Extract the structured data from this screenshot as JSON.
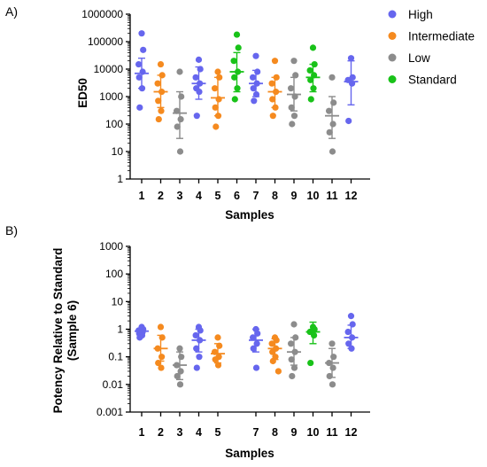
{
  "colors": {
    "High": "#6666ee",
    "Intermediate": "#f58a1f",
    "Low": "#8c8c8c",
    "Standard": "#19c219",
    "axis": "#000000"
  },
  "legend": {
    "placement": "top-right",
    "items": [
      {
        "label": "High",
        "group": "High"
      },
      {
        "label": "Intermediate",
        "group": "Intermediate"
      },
      {
        "label": "Low",
        "group": "Low"
      },
      {
        "label": "Standard",
        "group": "Standard"
      }
    ]
  },
  "chart_data": [
    {
      "type": "scatter",
      "panel_label": "A)",
      "title": "",
      "xlabel": "Samples",
      "ylabel": "ED50",
      "yscale": "log",
      "ylim": [
        1,
        1000000
      ],
      "yticks": [
        {
          "value": 1,
          "label": "1"
        },
        {
          "value": 10,
          "label": "10"
        },
        {
          "value": 100,
          "label": "100"
        },
        {
          "value": 1000,
          "label": "1000"
        },
        {
          "value": 10000,
          "label": "10000"
        },
        {
          "value": 100000,
          "label": "100000"
        },
        {
          "value": 1000000,
          "label": "1000000"
        }
      ],
      "categories": [
        "1",
        "2",
        "3",
        "4",
        "5",
        "6",
        "7",
        "8",
        "9",
        "10",
        "11",
        "12"
      ],
      "samples": [
        {
          "label": "1",
          "group": "High",
          "points": [
            200000,
            50000,
            15000,
            8000,
            5000,
            2000,
            400
          ],
          "mean": 7000,
          "err": [
            2000,
            25000
          ]
        },
        {
          "label": "2",
          "group": "Intermediate",
          "points": [
            15000,
            6000,
            3000,
            1500,
            700,
            300,
            150
          ],
          "mean": 1500,
          "err": [
            400,
            6000
          ]
        },
        {
          "label": "3",
          "group": "Low",
          "points": [
            8000,
            1000,
            300,
            150,
            80,
            10
          ],
          "mean": 250,
          "err": [
            30,
            1500
          ]
        },
        {
          "label": "4",
          "group": "High",
          "points": [
            22000,
            10000,
            5000,
            3000,
            2000,
            1500,
            200
          ],
          "mean": 3000,
          "err": [
            800,
            12000
          ]
        },
        {
          "label": "5",
          "group": "Intermediate",
          "points": [
            8000,
            5000,
            2000,
            800,
            400,
            200,
            80
          ],
          "mean": 900,
          "err": [
            200,
            5000
          ]
        },
        {
          "label": "6",
          "group": "Standard",
          "points": [
            180000,
            60000,
            20000,
            8000,
            5000,
            2000,
            800
          ],
          "mean": 8000,
          "err": [
            1500,
            40000
          ]
        },
        {
          "label": "7",
          "group": "High",
          "points": [
            30000,
            8000,
            5000,
            3000,
            2000,
            1200,
            700
          ],
          "mean": 3000,
          "err": [
            1000,
            9000
          ]
        },
        {
          "label": "8",
          "group": "Intermediate",
          "points": [
            20000,
            5000,
            3000,
            1500,
            800,
            400,
            200
          ],
          "mean": 1500,
          "err": [
            400,
            5000
          ]
        },
        {
          "label": "9",
          "group": "Low",
          "points": [
            20000,
            6000,
            2000,
            1000,
            400,
            200,
            100
          ],
          "mean": 1200,
          "err": [
            300,
            5000
          ]
        },
        {
          "label": "10",
          "group": "Standard",
          "points": [
            60000,
            15000,
            9000,
            6000,
            4000,
            2000,
            800
          ],
          "mean": 5000,
          "err": [
            1500,
            15000
          ]
        },
        {
          "label": "11",
          "group": "Low",
          "points": [
            5000,
            600,
            300,
            100,
            50,
            10
          ],
          "mean": 200,
          "err": [
            30,
            1000
          ]
        },
        {
          "label": "12",
          "group": "High",
          "points": [
            25000,
            5000,
            4000,
            3000,
            130
          ],
          "mean": 3500,
          "err": [
            500,
            20000
          ]
        }
      ]
    },
    {
      "type": "scatter",
      "panel_label": "B)",
      "title": "",
      "xlabel": "Samples",
      "ylabel": "Potency Relative to Standard\n(Sample 6)",
      "yscale": "log",
      "ylim": [
        0.001,
        1000
      ],
      "yticks": [
        {
          "value": 0.001,
          "label": "0.001"
        },
        {
          "value": 0.01,
          "label": "0.01"
        },
        {
          "value": 0.1,
          "label": "0.1"
        },
        {
          "value": 1,
          "label": "1"
        },
        {
          "value": 10,
          "label": "10"
        },
        {
          "value": 100,
          "label": "100"
        },
        {
          "value": 1000,
          "label": "1000"
        }
      ],
      "categories": [
        "1",
        "2",
        "3",
        "4",
        "5",
        "7",
        "8",
        "9",
        "10",
        "11",
        "12"
      ],
      "samples": [
        {
          "label": "1",
          "group": "High",
          "points": [
            1.2,
            1.0,
            0.9,
            0.8,
            0.7,
            0.6,
            0.5
          ],
          "mean": 0.85,
          "err": [
            0.7,
            1.1
          ]
        },
        {
          "label": "2",
          "group": "Intermediate",
          "points": [
            1.2,
            0.5,
            0.2,
            0.1,
            0.06,
            0.04
          ],
          "mean": 0.2,
          "err": [
            0.07,
            0.6
          ]
        },
        {
          "label": "3",
          "group": "Low",
          "points": [
            0.2,
            0.1,
            0.05,
            0.03,
            0.02,
            0.01
          ],
          "mean": 0.05,
          "err": [
            0.015,
            0.15
          ]
        },
        {
          "label": "4",
          "group": "High",
          "points": [
            1.2,
            0.9,
            0.6,
            0.4,
            0.2,
            0.1,
            0.04
          ],
          "mean": 0.4,
          "err": [
            0.15,
            1.0
          ]
        },
        {
          "label": "5",
          "group": "Intermediate",
          "points": [
            0.5,
            0.25,
            0.15,
            0.1,
            0.08,
            0.05
          ],
          "mean": 0.13,
          "err": [
            0.06,
            0.3
          ]
        },
        {
          "label": "7",
          "group": "High",
          "points": [
            1.0,
            0.7,
            0.5,
            0.3,
            0.2,
            0.04
          ],
          "mean": 0.4,
          "err": [
            0.15,
            1.0
          ]
        },
        {
          "label": "8",
          "group": "Intermediate",
          "points": [
            0.5,
            0.4,
            0.3,
            0.2,
            0.15,
            0.1,
            0.07,
            0.03
          ],
          "mean": 0.2,
          "err": [
            0.08,
            0.45
          ]
        },
        {
          "label": "9",
          "group": "Low",
          "points": [
            1.5,
            0.5,
            0.3,
            0.15,
            0.08,
            0.04,
            0.02
          ],
          "mean": 0.15,
          "err": [
            0.05,
            0.5
          ]
        },
        {
          "label": "10",
          "group": "Standard",
          "points": [
            1.2,
            1.0,
            0.8,
            0.6,
            0.06
          ],
          "mean": 0.8,
          "err": [
            0.3,
            1.8
          ]
        },
        {
          "label": "11",
          "group": "Low",
          "points": [
            0.3,
            0.1,
            0.06,
            0.04,
            0.02,
            0.01
          ],
          "mean": 0.06,
          "err": [
            0.018,
            0.2
          ]
        },
        {
          "label": "12",
          "group": "High",
          "points": [
            3.0,
            1.5,
            0.8,
            0.5,
            0.3,
            0.2
          ],
          "mean": 0.5,
          "err": [
            0.2,
            1.4
          ]
        }
      ]
    }
  ]
}
